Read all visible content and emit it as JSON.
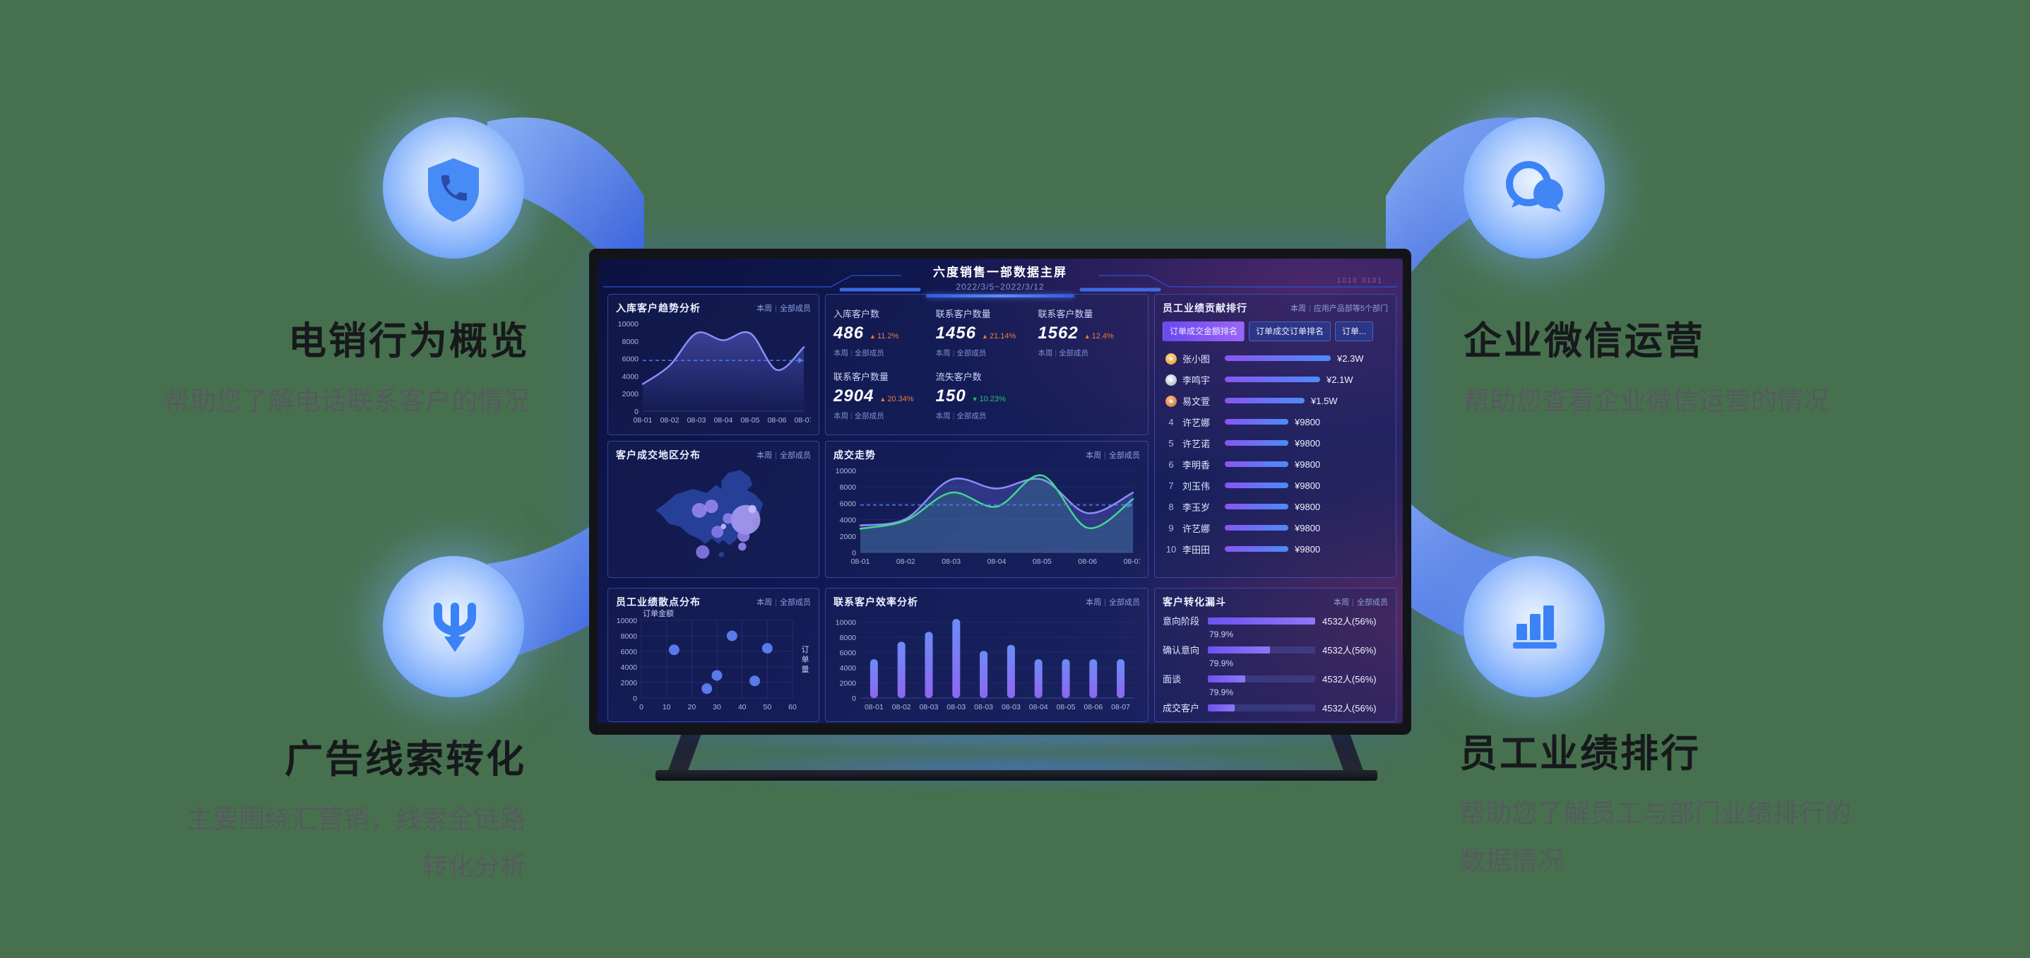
{
  "page": {
    "background": "#47714E"
  },
  "callouts": {
    "top_left": {
      "title": "电销行为概览",
      "desc": "帮助您了解电话联系客户的情况",
      "icon": "shield-phone"
    },
    "top_right": {
      "title": "企业微信运营",
      "desc": "帮助您查看企业微信运营的情况",
      "icon": "chat-bubbles"
    },
    "bottom_left": {
      "title": "广告线索转化",
      "desc_line1": "主要围绕汇营销，线索全链路",
      "desc_line2": "转化分析",
      "icon": "funnel-merge"
    },
    "bottom_right": {
      "title": "员工业绩排行",
      "desc_line1": "帮助您了解员工与部门业绩排行的",
      "desc_line2": "数据情况",
      "icon": "bar-chart"
    }
  },
  "screen": {
    "title": "六度销售一部数据主屏",
    "date_range": "2022/3/5~2022/3/12",
    "deco_binary": "1010 0101",
    "filter_week": "本周",
    "filter_members": "全部成员",
    "panels": {
      "trend": {
        "title": "入库客户趋势分析",
        "x": [
          "08-01",
          "08-02",
          "08-03",
          "08-04",
          "08-05",
          "08-06",
          "08-07"
        ],
        "yticks": [
          0,
          2000,
          4000,
          6000,
          8000,
          10000
        ],
        "ymax": 10000,
        "values": [
          3100,
          5200,
          8900,
          8100,
          8900,
          4700,
          7300
        ],
        "avg": 5800
      },
      "kpis": {
        "items": [
          {
            "label": "入库客户数",
            "value": "486",
            "delta": "11.2%",
            "dir": "up"
          },
          {
            "label": "联系客户数量",
            "value": "1456",
            "delta": "21.14%",
            "dir": "up"
          },
          {
            "label": "联系客户数量",
            "value": "1562",
            "delta": "12.4%",
            "dir": "up"
          },
          {
            "label": "联系客户数量",
            "value": "2904",
            "delta": "20.34%",
            "dir": "up"
          },
          {
            "label": "流失客户数",
            "value": "150",
            "delta": "10.23%",
            "dir": "down"
          }
        ]
      },
      "rank": {
        "title": "员工业绩贡献排行",
        "filter_b": "应用产品部等5个部门",
        "tabs": [
          {
            "label": "订单成交金额排名",
            "active": true
          },
          {
            "label": "订单成交订单排名",
            "active": false
          },
          {
            "label": "订单...",
            "active": false
          }
        ],
        "rows": [
          {
            "rank": 1,
            "name": "张小图",
            "value": "¥2.3W",
            "pct": 1.0
          },
          {
            "rank": 2,
            "name": "李鸣宇",
            "value": "¥2.1W",
            "pct": 0.9
          },
          {
            "rank": 3,
            "name": "易文萱",
            "value": "¥1.5W",
            "pct": 0.75
          },
          {
            "rank": 4,
            "name": "许艺娜",
            "value": "¥9800",
            "pct": 0.6
          },
          {
            "rank": 5,
            "name": "许艺诺",
            "value": "¥9800",
            "pct": 0.6
          },
          {
            "rank": 6,
            "name": "李明香",
            "value": "¥9800",
            "pct": 0.6
          },
          {
            "rank": 7,
            "name": "刘玉伟",
            "value": "¥9800",
            "pct": 0.6
          },
          {
            "rank": 8,
            "name": "李玉岁",
            "value": "¥9800",
            "pct": 0.6
          },
          {
            "rank": 9,
            "name": "许艺娜",
            "value": "¥9800",
            "pct": 0.6
          },
          {
            "rank": 10,
            "name": "李田田",
            "value": "¥9800",
            "pct": 0.6
          }
        ]
      },
      "map": {
        "title": "客户成交地区分布",
        "bubbles": [
          {
            "x": 186,
            "y": 86,
            "r": 22,
            "c": "#b2a1f8",
            "o": 0.85
          },
          {
            "x": 183,
            "y": 110,
            "r": 9,
            "c": "#9c8af4",
            "o": 0.85
          },
          {
            "x": 181,
            "y": 126,
            "r": 6,
            "c": "#9c8af4",
            "o": 0.85
          },
          {
            "x": 160,
            "y": 84,
            "r": 8,
            "c": "#9c8af4",
            "o": 0.8
          },
          {
            "x": 117,
            "y": 72,
            "r": 11,
            "c": "#9c8af4",
            "o": 0.85
          },
          {
            "x": 135,
            "y": 66,
            "r": 10,
            "c": "#9c8af4",
            "o": 0.85
          },
          {
            "x": 144,
            "y": 104,
            "r": 9,
            "c": "#8f7df0",
            "o": 0.85
          },
          {
            "x": 122,
            "y": 134,
            "r": 10,
            "c": "#8f7df0",
            "o": 0.85
          },
          {
            "x": 153,
            "y": 96,
            "r": 4,
            "c": "#c9bcff",
            "o": 0.9
          },
          {
            "x": 196,
            "y": 70,
            "r": 6,
            "c": "#c9bcff",
            "o": 0.9
          }
        ]
      },
      "deal": {
        "title": "成交走势",
        "x": [
          "08-01",
          "08-02",
          "08-03",
          "08-04",
          "08-05",
          "08-06",
          "08-07"
        ],
        "yticks": [
          0,
          2000,
          4000,
          6000,
          8000,
          10000
        ],
        "ymax": 10000,
        "avg": 5800,
        "series": [
          {
            "name": "成交-紫",
            "color": "#8b8ef8",
            "fill": "rgba(108,112,240,0.30)",
            "values": [
              3300,
              4100,
              8900,
              7800,
              8900,
              4800,
              7300
            ]
          },
          {
            "name": "成交-绿",
            "color": "#3fd98a",
            "fill": "rgba(62,215,135,0.14)",
            "values": [
              2900,
              3900,
              7300,
              5600,
              9400,
              3000,
              6500
            ]
          }
        ]
      },
      "scatter": {
        "title": "员工业绩散点分布",
        "ylabel": "订单金额",
        "xlabel": "订单量",
        "xticks": [
          0,
          10,
          20,
          30,
          40,
          50,
          60
        ],
        "yticks": [
          0,
          2000,
          4000,
          6000,
          8000,
          10000
        ],
        "xmax": 60,
        "ymax": 10000,
        "points": [
          [
            13,
            6200
          ],
          [
            26,
            1200
          ],
          [
            30,
            2900
          ],
          [
            36,
            8000
          ],
          [
            45,
            2200
          ],
          [
            50,
            6400
          ]
        ]
      },
      "bars": {
        "title": "联系客户效率分析",
        "x": [
          "08-01",
          "08-02",
          "08-03",
          "08-03",
          "08-03",
          "08-03",
          "08-04",
          "08-05",
          "08-06",
          "08-07"
        ],
        "yticks": [
          0,
          2000,
          4000,
          6000,
          8000,
          10000
        ],
        "ymax": 10600,
        "values": [
          5100,
          7400,
          8700,
          10400,
          6200,
          7000,
          5100,
          5100,
          5100,
          5100
        ]
      },
      "funnel": {
        "title": "客户转化漏斗",
        "rows": [
          {
            "label": "意向阶段",
            "value": "4532人(56%)",
            "sub": "79.9%",
            "pct": 1.0
          },
          {
            "label": "确认意向",
            "value": "4532人(56%)",
            "sub": "79.9%",
            "pct": 0.58
          },
          {
            "label": "面谈",
            "value": "4532人(56%)",
            "sub": "79.9%",
            "pct": 0.35
          },
          {
            "label": "成交客户",
            "value": "4532人(56%)",
            "sub": "",
            "pct": 0.25
          }
        ]
      }
    }
  },
  "colors": {
    "accent_blue": "#3b82f6",
    "line_purple": "#8b8ef8",
    "line_green": "#3fd98a",
    "bar_top": "#6d8cf6",
    "bar_bottom": "#8e66f2",
    "up": "#ee7b35",
    "down": "#2fc06e"
  }
}
